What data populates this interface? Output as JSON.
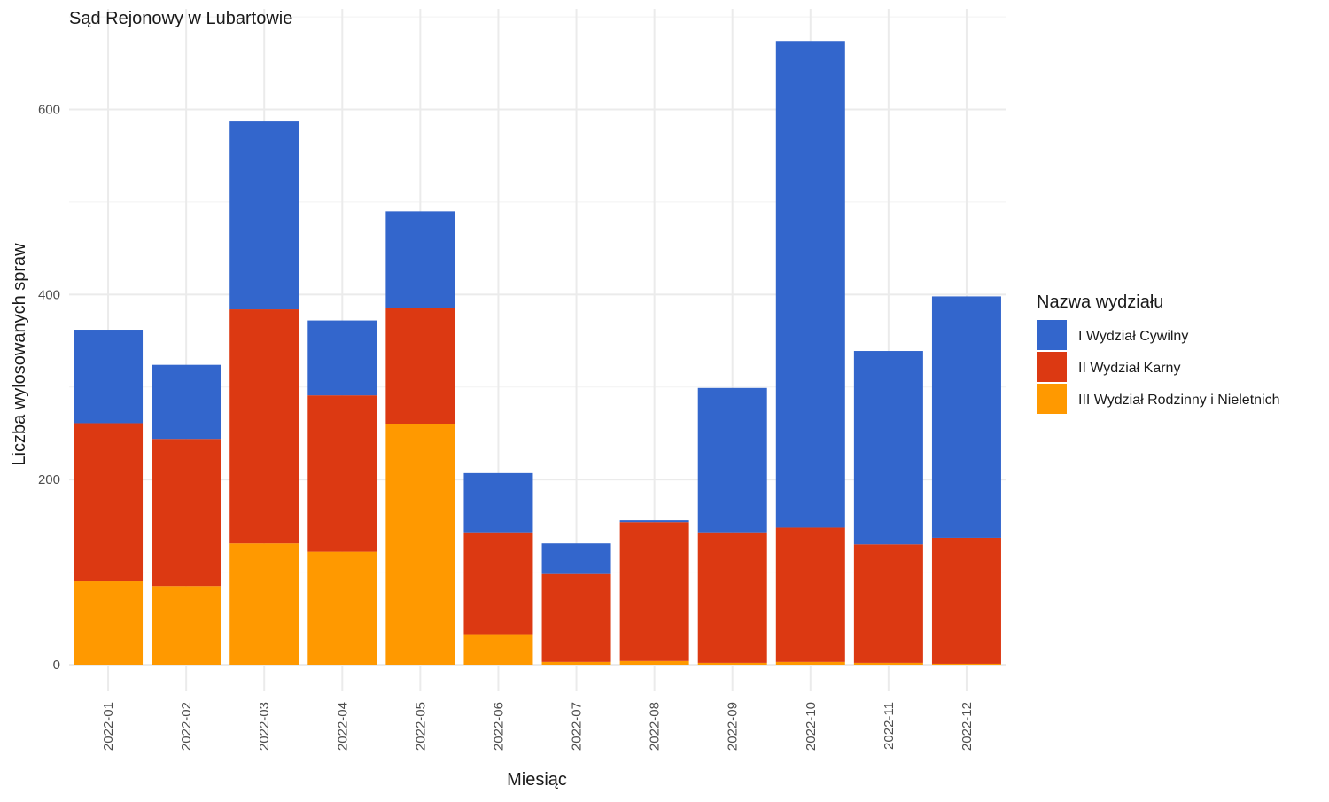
{
  "chart_data": {
    "type": "bar",
    "stacked": true,
    "title": "Sąd Rejonowy w Lubartowie",
    "xlabel": "Miesiąc",
    "ylabel": "Liczba wylosowanych spraw",
    "ylim": [
      0,
      700
    ],
    "yticks": [
      0,
      200,
      400,
      600
    ],
    "grid": true,
    "legend_title": "Nazwa wydziału",
    "legend_position": "right",
    "categories": [
      "2022-01",
      "2022-02",
      "2022-03",
      "2022-04",
      "2022-05",
      "2022-06",
      "2022-07",
      "2022-08",
      "2022-09",
      "2022-10",
      "2022-11",
      "2022-12"
    ],
    "series": [
      {
        "name": "III Wydział Rodzinny i Nieletnich",
        "color": "#FF9900",
        "values": [
          90,
          85,
          131,
          122,
          260,
          33,
          3,
          4,
          2,
          3,
          2,
          1
        ]
      },
      {
        "name": "II Wydział Karny",
        "color": "#DC3912",
        "values": [
          171,
          159,
          253,
          169,
          125,
          110,
          95,
          150,
          141,
          145,
          128,
          136
        ]
      },
      {
        "name": "I Wydział Cywilny",
        "color": "#3366CC",
        "values": [
          101,
          80,
          203,
          81,
          105,
          64,
          33,
          2,
          156,
          526,
          209,
          261
        ]
      }
    ],
    "legend_order": [
      "I Wydział Cywilny",
      "II Wydział Karny",
      "III Wydział Rodzinny i Nieletnich"
    ]
  }
}
